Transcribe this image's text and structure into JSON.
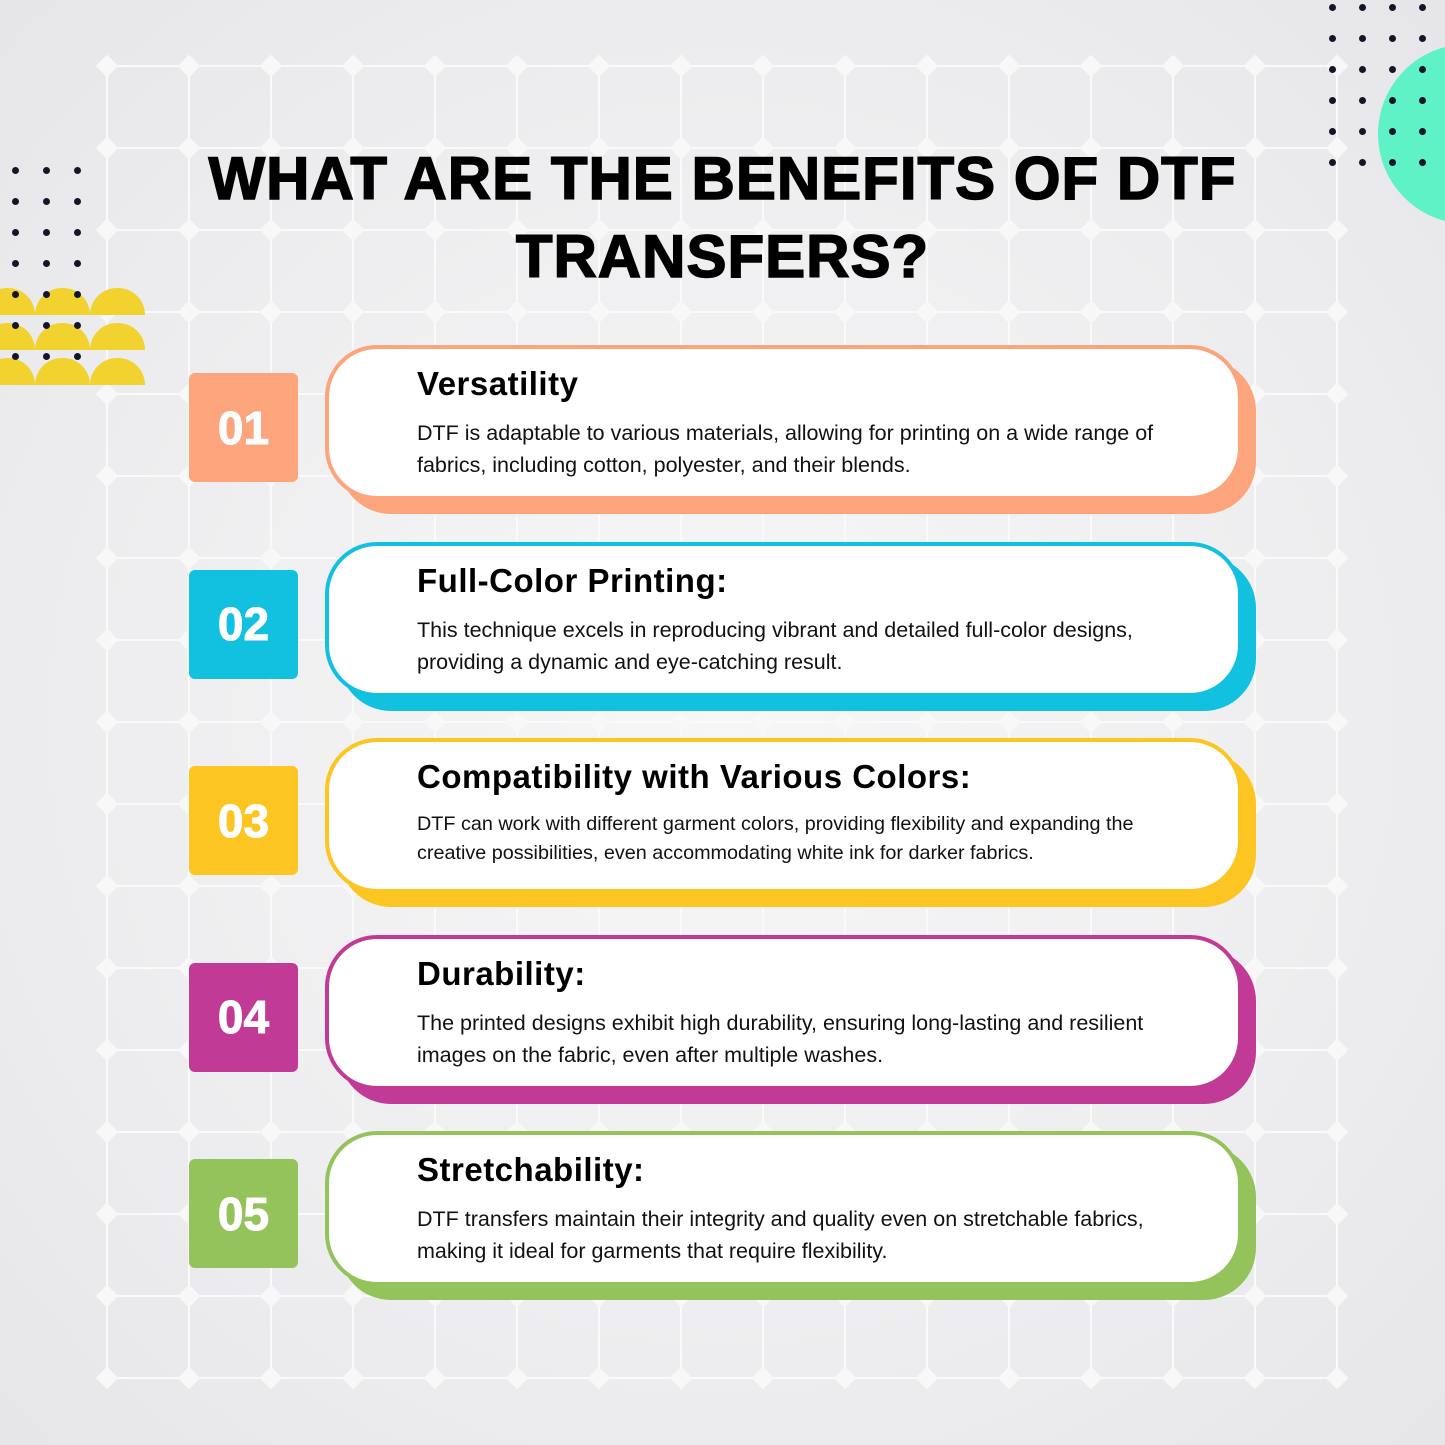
{
  "title": "WHAT ARE THE BENEFITS OF DTF TRANSFERS?",
  "colors": {
    "accent_teal": "#5EF2C6",
    "accent_yellow": "#F2D22E",
    "dots": "#15152a"
  },
  "benefits": [
    {
      "number": "01",
      "heading": "Versatility",
      "text": "DTF is adaptable to various materials, allowing for printing on a wide range of fabrics, including cotton, polyester, and their blends.",
      "color": "#FCA47C"
    },
    {
      "number": "02",
      "heading": "Full-Color Printing:",
      "text": "This technique excels in reproducing vibrant and detailed full-color designs, providing a dynamic and eye-catching result.",
      "color": "#12C0E0"
    },
    {
      "number": "03",
      "heading": "Compatibility with Various Colors:",
      "text": "DTF can work with different garment colors, providing flexibility and expanding the creative possibilities, even accommodating white ink for darker fabrics.",
      "color": "#FDC521"
    },
    {
      "number": "04",
      "heading": "Durability:",
      "text": "The printed designs exhibit high durability, ensuring long-lasting and resilient images on the fabric, even after multiple washes.",
      "color": "#C13A96"
    },
    {
      "number": "05",
      "heading": "Stretchability:",
      "text": "DTF transfers maintain their integrity and quality even on stretchable fabrics, making it ideal for garments that require flexibility.",
      "color": "#94C35B"
    }
  ]
}
